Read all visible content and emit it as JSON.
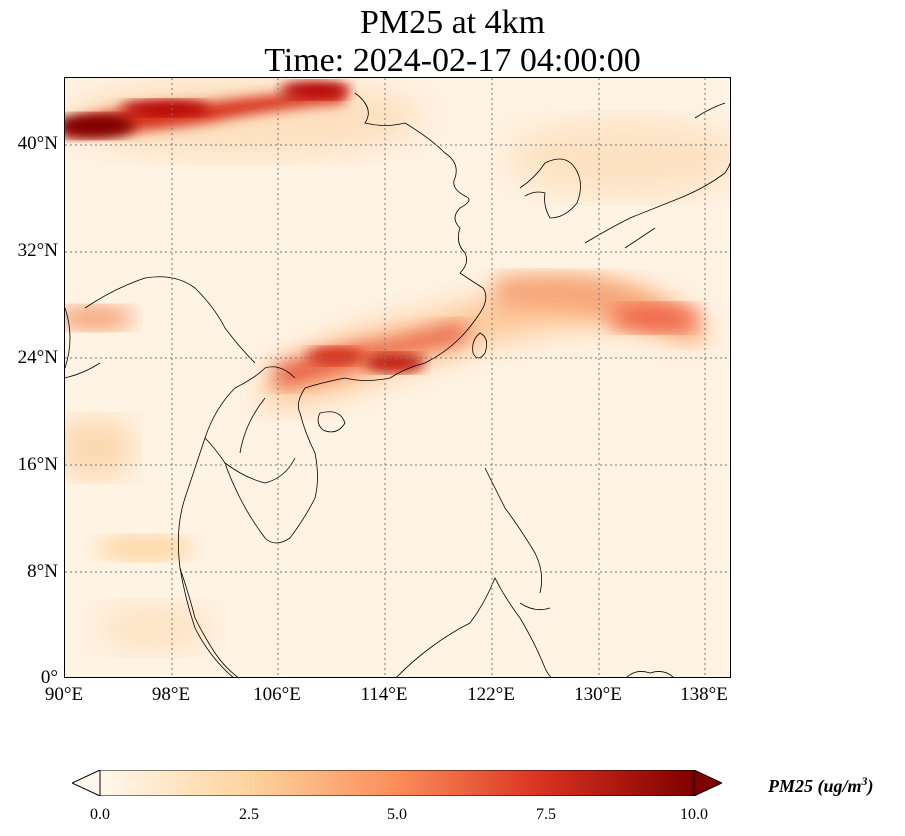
{
  "title": {
    "line1": "PM25 at 4km",
    "line2": "Time: 2024-02-17 04:00:00"
  },
  "map": {
    "lon_range": [
      90,
      140
    ],
    "lat_range": [
      0,
      45
    ],
    "lat_ticks": [
      "40°N",
      "32°N",
      "24°N",
      "16°N",
      "8°N",
      "0°"
    ],
    "lon_ticks": [
      "90°E",
      "98°E",
      "106°E",
      "114°E",
      "122°E",
      "130°E",
      "138°E"
    ],
    "gridlines": "dotted",
    "colormap": "OrRd"
  },
  "colorbar": {
    "label": "PM25 (ug/m",
    "label_sup": "3",
    "label_end": ")",
    "ticks": [
      "0.0",
      "2.5",
      "5.0",
      "7.5",
      "10.0"
    ],
    "range": [
      0.0,
      10.0
    ],
    "extend": "both",
    "colors": [
      "#fff7ec",
      "#fdd49e",
      "#fc8d59",
      "#d7301f",
      "#7f0000"
    ]
  }
}
